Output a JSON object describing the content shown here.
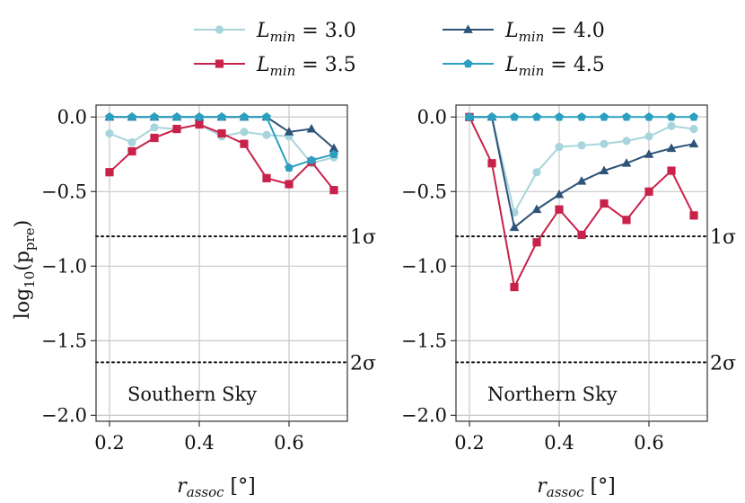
{
  "chart_data": {
    "type": "line",
    "ylabel": "log10(p_pre)",
    "xlabel": "r_assoc [°]",
    "xlim": [
      0.17,
      0.73
    ],
    "ylim": [
      -2.04,
      0.08
    ],
    "x_ticks": [
      0.2,
      0.4,
      0.6
    ],
    "x_tick_labels": [
      "0.2",
      "0.4",
      "0.6"
    ],
    "y_ticks": [
      0.0,
      -0.5,
      -1.0,
      -1.5,
      -2.0
    ],
    "y_tick_labels": [
      "0.0",
      "−0.5",
      "−1.0",
      "−1.5",
      "−2.0"
    ],
    "grid": true,
    "legend_position": "top-center",
    "sigma_lines": [
      {
        "label": "1σ",
        "value": -0.8
      },
      {
        "label": "2σ",
        "value": -1.645
      }
    ],
    "x": [
      0.2,
      0.25,
      0.3,
      0.35,
      0.4,
      0.45,
      0.5,
      0.55,
      0.6,
      0.65,
      0.7
    ],
    "series_style": [
      {
        "name": "L_min = 3.0",
        "legend_label": "L",
        "legend_sub": "min",
        "legend_value": " = 3.0",
        "color": "#a8d5dc",
        "marker": "circle"
      },
      {
        "name": "L_min = 3.5",
        "legend_label": "L",
        "legend_sub": "min",
        "legend_value": " = 3.5",
        "color": "#c8214a",
        "marker": "square"
      },
      {
        "name": "L_min = 4.0",
        "legend_label": "L",
        "legend_sub": "min",
        "legend_value": " = 4.0",
        "color": "#2d5378",
        "marker": "triangle"
      },
      {
        "name": "L_min = 4.5",
        "legend_label": "L",
        "legend_sub": "min",
        "legend_value": " = 4.5",
        "color": "#2a9fbf",
        "marker": "pentagon"
      }
    ],
    "panels": [
      {
        "label": "Southern Sky",
        "series": [
          {
            "name": "L_min = 3.0",
            "values": [
              -0.11,
              -0.17,
              -0.07,
              -0.08,
              -0.05,
              -0.13,
              -0.1,
              -0.12,
              -0.13,
              -0.31,
              -0.27
            ]
          },
          {
            "name": "L_min = 3.5",
            "values": [
              -0.37,
              -0.23,
              -0.14,
              -0.08,
              -0.05,
              -0.11,
              -0.18,
              -0.41,
              -0.45,
              -0.3,
              -0.49
            ]
          },
          {
            "name": "L_min = 4.0",
            "values": [
              0.0,
              0.0,
              0.0,
              0.0,
              0.0,
              0.0,
              0.0,
              0.0,
              -0.1,
              -0.08,
              -0.21
            ]
          },
          {
            "name": "L_min = 4.5",
            "values": [
              0.0,
              0.0,
              0.0,
              0.0,
              0.0,
              0.0,
              0.0,
              0.0,
              -0.34,
              -0.29,
              -0.25
            ]
          }
        ]
      },
      {
        "label": "Northern Sky",
        "series": [
          {
            "name": "L_min = 3.0",
            "values": [
              0.0,
              0.0,
              -0.64,
              -0.37,
              -0.2,
              -0.19,
              -0.18,
              -0.16,
              -0.13,
              -0.06,
              -0.08
            ]
          },
          {
            "name": "L_min = 3.5",
            "values": [
              0.0,
              -0.31,
              -1.14,
              -0.84,
              -0.62,
              -0.79,
              -0.58,
              -0.69,
              -0.5,
              -0.36,
              -0.66
            ]
          },
          {
            "name": "L_min = 4.0",
            "values": [
              0.0,
              0.0,
              -0.74,
              -0.62,
              -0.52,
              -0.43,
              -0.36,
              -0.31,
              -0.25,
              -0.21,
              -0.18
            ]
          },
          {
            "name": "L_min = 4.5",
            "values": [
              0.0,
              0.0,
              0.0,
              0.0,
              0.0,
              0.0,
              0.0,
              0.0,
              0.0,
              0.0,
              0.0
            ]
          }
        ]
      }
    ]
  }
}
